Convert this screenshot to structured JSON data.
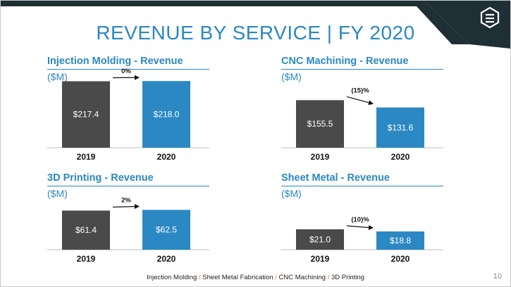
{
  "slide": {
    "title": "REVENUE BY SERVICE | FY 2020",
    "page_number": "10",
    "footer": {
      "items": [
        "Injection Molding",
        "Sheet Metal Fabrication",
        "CNC Machining",
        "3D Printing"
      ],
      "separator": "/"
    },
    "colors": {
      "accent": "#2b88c2",
      "bar_2019": "#4a4a4a",
      "bar_2020": "#2b88c2",
      "band_dark": "#1f2f36",
      "band_teal": "#2e6f86",
      "separator": "#e07b2a"
    }
  },
  "chart_data": [
    {
      "type": "bar",
      "title": "Injection Molding - Revenue",
      "ylabel": "($M)",
      "categories": [
        "2019",
        "2020"
      ],
      "values": [
        217.4,
        218.0
      ],
      "data_labels": [
        "$217.4",
        "$218.0"
      ],
      "change_label": "0%",
      "ylim": [
        0,
        230
      ]
    },
    {
      "type": "bar",
      "title": "CNC Machining - Revenue",
      "ylabel": "($M)",
      "categories": [
        "2019",
        "2020"
      ],
      "values": [
        155.5,
        131.6
      ],
      "data_labels": [
        "$155.5",
        "$131.6"
      ],
      "change_label": "(15)%",
      "ylim": [
        0,
        230
      ]
    },
    {
      "type": "bar",
      "title": "3D Printing - Revenue",
      "ylabel": "($M)",
      "categories": [
        "2019",
        "2020"
      ],
      "values": [
        61.4,
        62.5
      ],
      "data_labels": [
        "$61.4",
        "$62.5"
      ],
      "change_label": "2%",
      "ylim": [
        0,
        64
      ]
    },
    {
      "type": "bar",
      "title": "Sheet Metal - Revenue",
      "ylabel": "($M)",
      "categories": [
        "2019",
        "2020"
      ],
      "values": [
        21.0,
        18.8
      ],
      "data_labels": [
        "$21.0",
        "$18.8"
      ],
      "change_label": "(10)%",
      "ylim": [
        0,
        42
      ]
    }
  ]
}
